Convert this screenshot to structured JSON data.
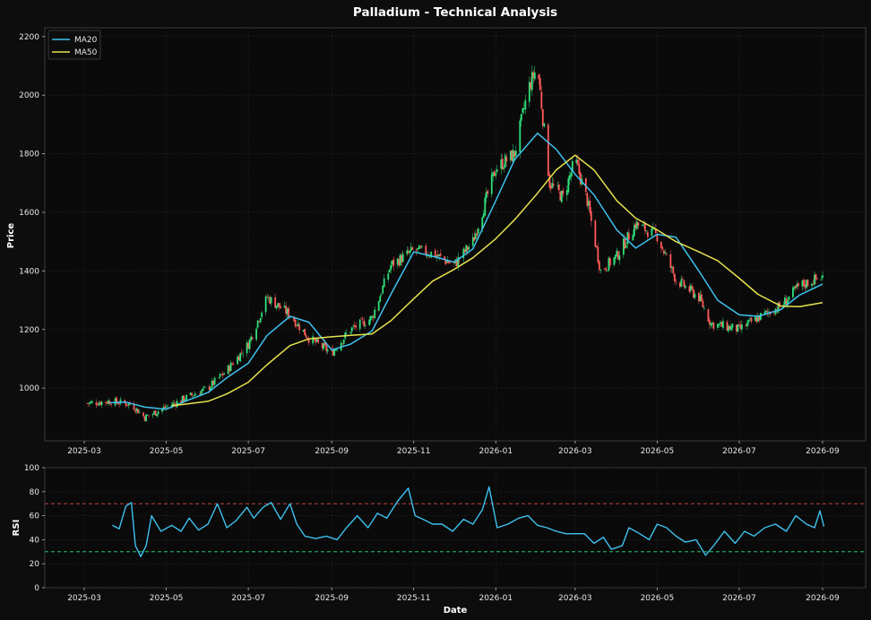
{
  "chart_data": [
    {
      "type": "candlestick",
      "title": "Palladium - Technical Analysis",
      "xlabel": "",
      "ylabel": "Price",
      "ylim": [
        820,
        2230
      ],
      "yticks": [
        1000,
        1200,
        1400,
        1600,
        1800,
        2000,
        2200
      ],
      "xticks": [
        "2025-03",
        "2025-05",
        "2025-07",
        "2025-09",
        "2025-11",
        "2026-01",
        "2026-03",
        "2026-05",
        "2026-07",
        "2026-09"
      ],
      "grid": true,
      "legend_position": "top-left",
      "candle_colors": {
        "up": "#2ee07a",
        "down": "#ff5a5a"
      },
      "price_anchors": [
        [
          "2025-03-03",
          948
        ],
        [
          "2025-03-20",
          955
        ],
        [
          "2025-04-05",
          945
        ],
        [
          "2025-04-15",
          900
        ],
        [
          "2025-05-01",
          935
        ],
        [
          "2025-05-15",
          965
        ],
        [
          "2025-06-01",
          1000
        ],
        [
          "2025-06-15",
          1060
        ],
        [
          "2025-07-01",
          1150
        ],
        [
          "2025-07-15",
          1310
        ],
        [
          "2025-08-01",
          1250
        ],
        [
          "2025-08-15",
          1170
        ],
        [
          "2025-09-01",
          1120
        ],
        [
          "2025-09-15",
          1200
        ],
        [
          "2025-10-01",
          1240
        ],
        [
          "2025-10-15",
          1420
        ],
        [
          "2025-11-01",
          1470
        ],
        [
          "2025-11-15",
          1460
        ],
        [
          "2025-12-01",
          1420
        ],
        [
          "2025-12-15",
          1500
        ],
        [
          "2026-01-01",
          1750
        ],
        [
          "2026-01-15",
          1800
        ],
        [
          "2026-01-25",
          2020
        ],
        [
          "2026-02-01",
          2100
        ],
        [
          "2026-02-10",
          1700
        ],
        [
          "2026-02-20",
          1650
        ],
        [
          "2026-03-01",
          1780
        ],
        [
          "2026-03-10",
          1640
        ],
        [
          "2026-03-20",
          1400
        ],
        [
          "2026-04-01",
          1450
        ],
        [
          "2026-04-15",
          1560
        ],
        [
          "2026-05-01",
          1520
        ],
        [
          "2026-05-15",
          1370
        ],
        [
          "2026-06-01",
          1310
        ],
        [
          "2026-06-10",
          1220
        ],
        [
          "2026-07-01",
          1200
        ],
        [
          "2026-07-15",
          1240
        ],
        [
          "2026-08-01",
          1280
        ],
        [
          "2026-08-15",
          1350
        ],
        [
          "2026-09-01",
          1380
        ]
      ],
      "series": [
        {
          "name": "MA20",
          "color": "#3ec1ee",
          "points": [
            [
              "2025-03-20",
              950
            ],
            [
              "2025-04-01",
              952
            ],
            [
              "2025-04-15",
              935
            ],
            [
              "2025-05-01",
              928
            ],
            [
              "2025-05-15",
              955
            ],
            [
              "2025-06-01",
              985
            ],
            [
              "2025-06-15",
              1035
            ],
            [
              "2025-07-01",
              1085
            ],
            [
              "2025-07-15",
              1180
            ],
            [
              "2025-08-01",
              1245
            ],
            [
              "2025-08-15",
              1225
            ],
            [
              "2025-09-01",
              1130
            ],
            [
              "2025-09-15",
              1150
            ],
            [
              "2025-10-01",
              1195
            ],
            [
              "2025-10-15",
              1320
            ],
            [
              "2025-11-01",
              1465
            ],
            [
              "2025-11-15",
              1450
            ],
            [
              "2025-12-01",
              1430
            ],
            [
              "2025-12-15",
              1475
            ],
            [
              "2026-01-01",
              1640
            ],
            [
              "2026-01-15",
              1780
            ],
            [
              "2026-02-01",
              1870
            ],
            [
              "2026-02-15",
              1815
            ],
            [
              "2026-03-01",
              1730
            ],
            [
              "2026-03-15",
              1660
            ],
            [
              "2026-04-01",
              1540
            ],
            [
              "2026-04-15",
              1478
            ],
            [
              "2026-05-01",
              1525
            ],
            [
              "2026-05-15",
              1515
            ],
            [
              "2026-06-01",
              1400
            ],
            [
              "2026-06-15",
              1300
            ],
            [
              "2026-07-01",
              1250
            ],
            [
              "2026-07-15",
              1245
            ],
            [
              "2026-08-01",
              1268
            ],
            [
              "2026-08-15",
              1318
            ],
            [
              "2026-09-01",
              1355
            ]
          ]
        },
        {
          "name": "MA50",
          "color": "#e6e24f",
          "points": [
            [
              "2025-05-05",
              940
            ],
            [
              "2025-05-15",
              945
            ],
            [
              "2025-06-01",
              955
            ],
            [
              "2025-06-15",
              980
            ],
            [
              "2025-07-01",
              1020
            ],
            [
              "2025-07-15",
              1080
            ],
            [
              "2025-08-01",
              1145
            ],
            [
              "2025-08-15",
              1168
            ],
            [
              "2025-09-01",
              1175
            ],
            [
              "2025-09-15",
              1180
            ],
            [
              "2025-10-01",
              1185
            ],
            [
              "2025-10-15",
              1230
            ],
            [
              "2025-11-01",
              1305
            ],
            [
              "2025-11-15",
              1365
            ],
            [
              "2025-12-01",
              1405
            ],
            [
              "2025-12-15",
              1445
            ],
            [
              "2026-01-01",
              1510
            ],
            [
              "2026-01-15",
              1575
            ],
            [
              "2026-02-01",
              1665
            ],
            [
              "2026-02-15",
              1745
            ],
            [
              "2026-03-01",
              1795
            ],
            [
              "2026-03-15",
              1745
            ],
            [
              "2026-04-01",
              1640
            ],
            [
              "2026-04-15",
              1580
            ],
            [
              "2026-05-01",
              1540
            ],
            [
              "2026-05-15",
              1500
            ],
            [
              "2026-06-01",
              1465
            ],
            [
              "2026-06-15",
              1435
            ],
            [
              "2026-07-01",
              1375
            ],
            [
              "2026-07-15",
              1320
            ],
            [
              "2026-08-01",
              1280
            ],
            [
              "2026-08-15",
              1278
            ],
            [
              "2026-09-01",
              1292
            ]
          ]
        }
      ]
    },
    {
      "type": "line",
      "title": "",
      "xlabel": "Date",
      "ylabel": "RSI",
      "ylim": [
        0,
        100
      ],
      "yticks": [
        0,
        20,
        40,
        60,
        80,
        100
      ],
      "xticks": [
        "2025-03",
        "2025-05",
        "2025-07",
        "2025-09",
        "2025-11",
        "2026-01",
        "2026-03",
        "2026-05",
        "2026-07",
        "2026-09"
      ],
      "grid": true,
      "reference_lines": [
        {
          "value": 70,
          "color": "#e04a4a"
        },
        {
          "value": 30,
          "color": "#2ee07a"
        }
      ],
      "series": [
        {
          "name": "RSI",
          "color": "#3ec1ee",
          "points": [
            [
              "2025-03-22",
              52
            ],
            [
              "2025-03-27",
              49
            ],
            [
              "2025-04-01",
              68
            ],
            [
              "2025-04-05",
              71
            ],
            [
              "2025-04-08",
              35
            ],
            [
              "2025-04-12",
              26
            ],
            [
              "2025-04-16",
              35
            ],
            [
              "2025-04-20",
              60
            ],
            [
              "2025-04-27",
              47
            ],
            [
              "2025-05-05",
              52
            ],
            [
              "2025-05-12",
              47
            ],
            [
              "2025-05-18",
              58
            ],
            [
              "2025-05-25",
              48
            ],
            [
              "2025-06-01",
              53
            ],
            [
              "2025-06-08",
              70
            ],
            [
              "2025-06-15",
              50
            ],
            [
              "2025-06-22",
              56
            ],
            [
              "2025-06-30",
              67
            ],
            [
              "2025-07-05",
              58
            ],
            [
              "2025-07-12",
              67
            ],
            [
              "2025-07-18",
              71
            ],
            [
              "2025-07-25",
              57
            ],
            [
              "2025-08-01",
              70
            ],
            [
              "2025-08-06",
              53
            ],
            [
              "2025-08-12",
              43
            ],
            [
              "2025-08-20",
              41
            ],
            [
              "2025-08-28",
              43
            ],
            [
              "2025-09-05",
              40
            ],
            [
              "2025-09-12",
              50
            ],
            [
              "2025-09-20",
              60
            ],
            [
              "2025-09-28",
              50
            ],
            [
              "2025-10-05",
              62
            ],
            [
              "2025-10-12",
              58
            ],
            [
              "2025-10-20",
              72
            ],
            [
              "2025-10-28",
              83
            ],
            [
              "2025-11-02",
              60
            ],
            [
              "2025-11-08",
              57
            ],
            [
              "2025-11-15",
              53
            ],
            [
              "2025-11-22",
              53
            ],
            [
              "2025-11-30",
              47
            ],
            [
              "2025-12-08",
              57
            ],
            [
              "2025-12-15",
              53
            ],
            [
              "2025-12-22",
              65
            ],
            [
              "2025-12-27",
              84
            ],
            [
              "2026-01-02",
              50
            ],
            [
              "2026-01-10",
              53
            ],
            [
              "2026-01-18",
              58
            ],
            [
              "2026-01-25",
              60
            ],
            [
              "2026-02-01",
              52
            ],
            [
              "2026-02-08",
              50
            ],
            [
              "2026-02-15",
              47
            ],
            [
              "2026-02-22",
              45
            ],
            [
              "2026-03-01",
              45
            ],
            [
              "2026-03-08",
              45
            ],
            [
              "2026-03-15",
              37
            ],
            [
              "2026-03-22",
              42
            ],
            [
              "2026-03-28",
              32
            ],
            [
              "2026-04-05",
              35
            ],
            [
              "2026-04-10",
              50
            ],
            [
              "2026-04-18",
              45
            ],
            [
              "2026-04-25",
              40
            ],
            [
              "2026-05-01",
              53
            ],
            [
              "2026-05-08",
              50
            ],
            [
              "2026-05-15",
              43
            ],
            [
              "2026-05-22",
              38
            ],
            [
              "2026-05-30",
              40
            ],
            [
              "2026-06-06",
              27
            ],
            [
              "2026-06-12",
              35
            ],
            [
              "2026-06-20",
              47
            ],
            [
              "2026-06-28",
              37
            ],
            [
              "2026-07-05",
              47
            ],
            [
              "2026-07-12",
              43
            ],
            [
              "2026-07-20",
              50
            ],
            [
              "2026-07-28",
              53
            ],
            [
              "2026-08-05",
              47
            ],
            [
              "2026-08-12",
              60
            ],
            [
              "2026-08-20",
              53
            ],
            [
              "2026-08-26",
              50
            ],
            [
              "2026-08-30",
              64
            ],
            [
              "2026-09-02",
              51
            ]
          ]
        }
      ]
    }
  ]
}
